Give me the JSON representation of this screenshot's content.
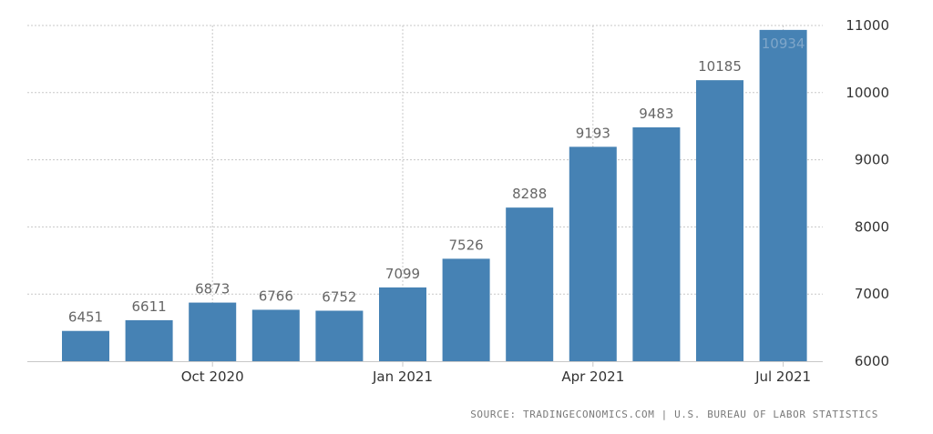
{
  "chart_data": {
    "type": "bar",
    "categories": [
      "2020-08",
      "2020-09",
      "2020-10",
      "2020-11",
      "2020-12",
      "2021-01",
      "2021-02",
      "2021-03",
      "2021-04",
      "2021-05",
      "2021-06",
      "2021-07"
    ],
    "values": [
      6451,
      6611,
      6873,
      6766,
      6752,
      7099,
      7526,
      8288,
      9193,
      9483,
      10185,
      10934
    ],
    "x_tick_labels": [
      {
        "category": "2020-10",
        "label": "Oct 2020"
      },
      {
        "category": "2021-01",
        "label": "Jan 2021"
      },
      {
        "category": "2021-04",
        "label": "Apr 2021"
      },
      {
        "category": "2021-07",
        "label": "Jul 2021"
      }
    ],
    "y_ticks": [
      6000,
      7000,
      8000,
      9000,
      10000,
      11000
    ],
    "ylim": [
      6000,
      11000
    ],
    "y_axis_position": "right",
    "grid": true,
    "bar_color": "#4682b4",
    "title": "",
    "xlabel": "",
    "ylabel": ""
  },
  "source": {
    "text": "SOURCE: TRADINGECONOMICS.COM | U.S. BUREAU OF LABOR STATISTICS"
  }
}
